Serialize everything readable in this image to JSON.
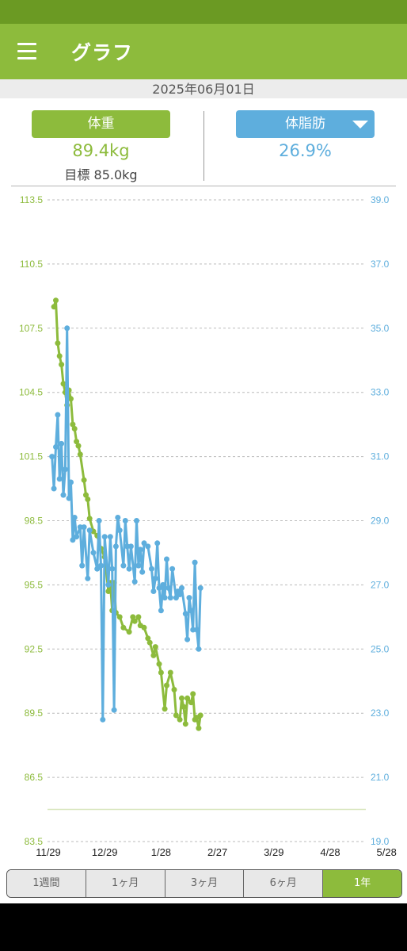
{
  "app": {
    "title": "グラフ",
    "date": "2025年06月01日"
  },
  "metrics": {
    "weight_label": "体重",
    "weight_value": "89.4kg",
    "goal_text": "目標 85.0kg",
    "fat_label": "体脂肪",
    "fat_value": "26.9%"
  },
  "ranges": [
    {
      "label": "1週間",
      "active": false
    },
    {
      "label": "1ヶ月",
      "active": false
    },
    {
      "label": "3ヶ月",
      "active": false
    },
    {
      "label": "6ヶ月",
      "active": false
    },
    {
      "label": "1年",
      "active": true
    }
  ],
  "chart_data": {
    "type": "line",
    "x_ticks": [
      "11/29",
      "12/29",
      "1/28",
      "2/27",
      "3/29",
      "4/28",
      "5/28"
    ],
    "y_left_ticks": [
      "113.5",
      "110.5",
      "107.5",
      "104.5",
      "101.5",
      "98.5",
      "95.5",
      "92.5",
      "89.5",
      "86.5",
      "83.5"
    ],
    "y_right_ticks": [
      "39.0",
      "37.0",
      "35.0",
      "33.0",
      "31.0",
      "29.0",
      "27.0",
      "25.0",
      "23.0",
      "21.0",
      "19.0"
    ],
    "y_left_range": [
      83.5,
      113.5
    ],
    "y_right_range": [
      19.0,
      39.0
    ],
    "goal_line": 85.0,
    "colors": {
      "weight": "#8dbb3c",
      "fat": "#5eaedd",
      "grid": "#bbbbbb",
      "goal": "#d8e6bd"
    },
    "series": [
      {
        "axis": "left",
        "points": [
          [
            "12/02",
            108.5
          ],
          [
            "12/03",
            108.8
          ],
          [
            "12/04",
            106.8
          ],
          [
            "12/05",
            106.2
          ],
          [
            "12/06",
            105.8
          ],
          [
            "12/07",
            104.9
          ],
          [
            "12/08",
            104.5
          ],
          [
            "12/09",
            103.9
          ],
          [
            "12/10",
            104.6
          ],
          [
            "12/11",
            104.2
          ],
          [
            "12/12",
            103.0
          ],
          [
            "12/13",
            102.8
          ],
          [
            "12/14",
            102.2
          ],
          [
            "12/15",
            102.0
          ],
          [
            "12/16",
            101.6
          ],
          [
            "12/18",
            100.4
          ],
          [
            "12/19",
            99.7
          ],
          [
            "12/20",
            99.5
          ],
          [
            "12/21",
            98.6
          ],
          [
            "12/23",
            98.0
          ],
          [
            "12/25",
            97.8
          ],
          [
            "12/27",
            97.2
          ],
          [
            "12/29",
            96.8
          ],
          [
            "12/31",
            95.2
          ],
          [
            "1/01",
            95.6
          ],
          [
            "1/02",
            94.3
          ],
          [
            "1/03",
            95.6
          ],
          [
            "1/04",
            94.2
          ],
          [
            "1/06",
            94.0
          ],
          [
            "1/08",
            93.5
          ],
          [
            "1/11",
            93.3
          ],
          [
            "1/13",
            94.0
          ],
          [
            "1/14",
            93.8
          ],
          [
            "1/16",
            94.0
          ],
          [
            "1/17",
            93.6
          ],
          [
            "1/19",
            93.5
          ],
          [
            "1/21",
            93.0
          ],
          [
            "1/22",
            92.8
          ],
          [
            "1/24",
            92.2
          ],
          [
            "1/25",
            92.6
          ],
          [
            "1/27",
            91.8
          ],
          [
            "1/28",
            91.4
          ],
          [
            "1/30",
            89.7
          ],
          [
            "1/31",
            90.8
          ],
          [
            "2/02",
            91.4
          ],
          [
            "2/04",
            90.6
          ],
          [
            "2/05",
            89.4
          ],
          [
            "2/07",
            89.2
          ],
          [
            "2/08",
            90.2
          ],
          [
            "2/09",
            89.8
          ],
          [
            "2/10",
            89.0
          ],
          [
            "2/11",
            90.2
          ],
          [
            "2/13",
            90.0
          ],
          [
            "2/14",
            90.4
          ],
          [
            "2/15",
            89.2
          ],
          [
            "2/16",
            89.3
          ],
          [
            "2/17",
            88.8
          ],
          [
            "2/18",
            89.4
          ]
        ]
      },
      {
        "axis": "right",
        "points": [
          [
            "12/01",
            31.0
          ],
          [
            "12/02",
            30.0
          ],
          [
            "12/03",
            31.3
          ],
          [
            "12/04",
            32.3
          ],
          [
            "12/05",
            30.3
          ],
          [
            "12/06",
            31.4
          ],
          [
            "12/07",
            29.8
          ],
          [
            "12/08",
            30.6
          ],
          [
            "12/09",
            35.0
          ],
          [
            "12/10",
            29.7
          ],
          [
            "12/11",
            30.2
          ],
          [
            "12/12",
            28.4
          ],
          [
            "12/13",
            29.1
          ],
          [
            "12/14",
            28.5
          ],
          [
            "12/16",
            28.8
          ],
          [
            "12/17",
            27.6
          ],
          [
            "12/18",
            28.8
          ],
          [
            "12/20",
            27.2
          ],
          [
            "12/21",
            28.7
          ],
          [
            "12/23",
            28.0
          ],
          [
            "12/25",
            27.5
          ],
          [
            "12/26",
            29.0
          ],
          [
            "12/27",
            27.6
          ],
          [
            "12/28",
            22.8
          ],
          [
            "12/29",
            28.5
          ],
          [
            "12/31",
            27.0
          ],
          [
            "1/01",
            28.5
          ],
          [
            "1/02",
            27.5
          ],
          [
            "1/03",
            23.1
          ],
          [
            "1/04",
            28.2
          ],
          [
            "1/05",
            29.1
          ],
          [
            "1/06",
            28.7
          ],
          [
            "1/08",
            27.6
          ],
          [
            "1/09",
            29.0
          ],
          [
            "1/10",
            28.2
          ],
          [
            "1/11",
            27.5
          ],
          [
            "1/12",
            28.2
          ],
          [
            "1/14",
            27.1
          ],
          [
            "1/15",
            29.0
          ],
          [
            "1/16",
            27.6
          ],
          [
            "1/17",
            28.1
          ],
          [
            "1/18",
            27.4
          ],
          [
            "1/19",
            28.3
          ],
          [
            "1/21",
            28.2
          ],
          [
            "1/23",
            27.5
          ],
          [
            "1/24",
            26.8
          ],
          [
            "1/25",
            27.2
          ],
          [
            "1/26",
            28.3
          ],
          [
            "1/27",
            26.9
          ],
          [
            "1/28",
            26.2
          ],
          [
            "1/29",
            27.0
          ],
          [
            "1/30",
            26.6
          ],
          [
            "1/31",
            27.8
          ],
          [
            "2/01",
            26.9
          ],
          [
            "2/02",
            26.6
          ],
          [
            "2/03",
            27.5
          ],
          [
            "2/05",
            26.6
          ],
          [
            "2/06",
            26.8
          ],
          [
            "2/07",
            26.7
          ],
          [
            "2/08",
            26.9
          ],
          [
            "2/10",
            26.1
          ],
          [
            "2/11",
            25.3
          ],
          [
            "2/12",
            26.6
          ],
          [
            "2/13",
            26.2
          ],
          [
            "2/14",
            25.6
          ],
          [
            "2/15",
            27.7
          ],
          [
            "2/16",
            25.6
          ],
          [
            "2/17",
            25.0
          ],
          [
            "2/18",
            26.9
          ]
        ]
      }
    ]
  }
}
